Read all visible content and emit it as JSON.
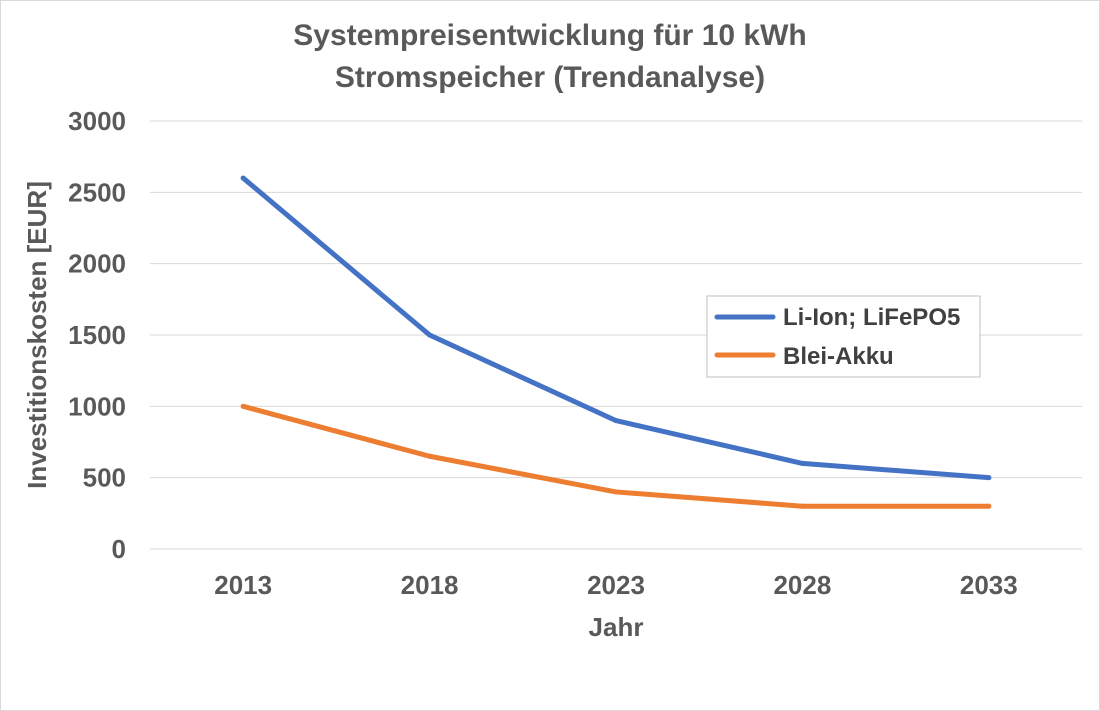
{
  "chart_data": {
    "type": "line",
    "title": "Systempreisentwicklung für 10 kWh Stromspeicher (Trendanalyse)",
    "title_lines": [
      "Systempreisentwicklung für 10 kWh",
      "Stromspeicher (Trendanalyse)"
    ],
    "xlabel": "Jahr",
    "ylabel": "Investitionskosten [EUR]",
    "categories": [
      "2013",
      "2018",
      "2023",
      "2028",
      "2033"
    ],
    "ylim": [
      0,
      3000
    ],
    "yticks": [
      0,
      500,
      1000,
      1500,
      2000,
      2500,
      3000
    ],
    "grid": true,
    "legend_position": "right",
    "series": [
      {
        "name": "Li-Ion; LiFePO5",
        "color": "#4472c4",
        "values": [
          2600,
          1500,
          900,
          600,
          500
        ]
      },
      {
        "name": "Blei-Akku",
        "color": "#ed7d31",
        "values": [
          1000,
          650,
          400,
          300,
          300
        ]
      }
    ]
  }
}
